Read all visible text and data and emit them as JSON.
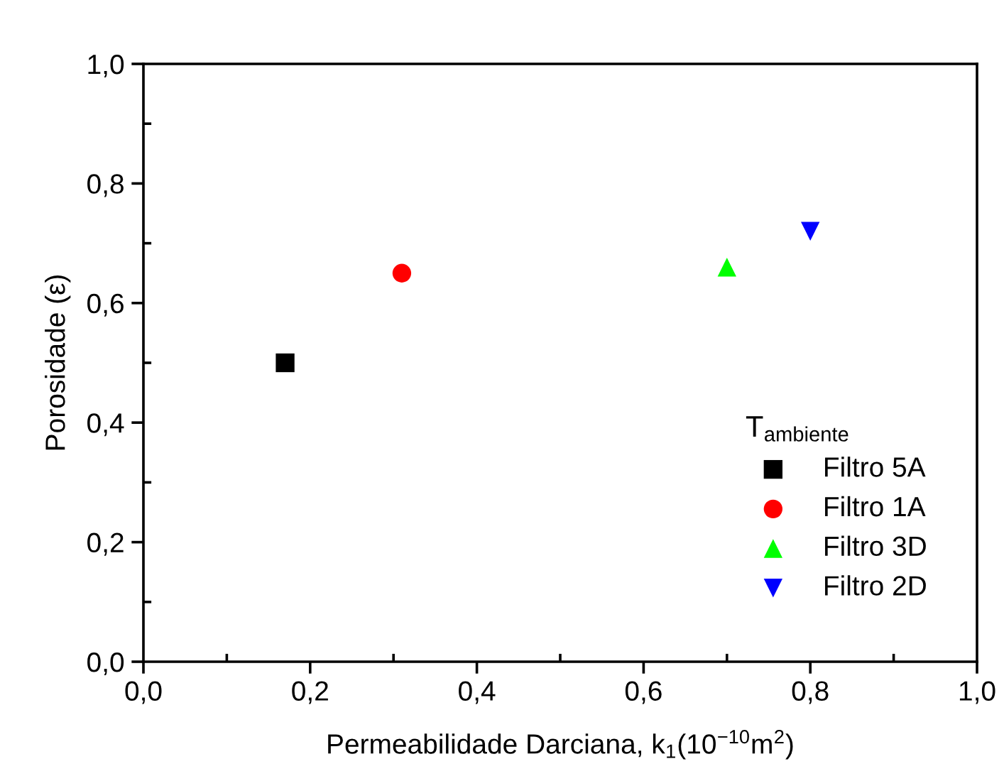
{
  "chart_data": {
    "type": "scatter",
    "xlabel": "Permeabilidade Darciana, k$_{1}$(10$^{−10}$m$^{2}$)",
    "ylabel": "Porosidade (ε)",
    "legend_title": "T$_{ambiente}$",
    "xlim": [
      0,
      1
    ],
    "ylim": [
      0,
      1
    ],
    "xticks": [
      {
        "value": 0,
        "label": "0,0"
      },
      {
        "value": 0.2,
        "label": "0,2"
      },
      {
        "value": 0.4,
        "label": "0,4"
      },
      {
        "value": 0.6,
        "label": "0,6"
      },
      {
        "value": 0.8,
        "label": "0,8"
      },
      {
        "value": 1,
        "label": "1,0"
      }
    ],
    "yticks": [
      {
        "value": 0,
        "label": "0,0"
      },
      {
        "value": 0.2,
        "label": "0,2"
      },
      {
        "value": 0.4,
        "label": "0,4"
      },
      {
        "value": 0.6,
        "label": "0,6"
      },
      {
        "value": 0.8,
        "label": "0,8"
      },
      {
        "value": 1,
        "label": "1,0"
      }
    ],
    "grid": false,
    "legend": "bottom right",
    "series": [
      {
        "name": "Filtro 5A",
        "color": "#000000",
        "marker": "square",
        "x": [
          0.17
        ],
        "values": [
          0.5
        ]
      },
      {
        "name": "Filtro 1A",
        "color": "#ff0000",
        "marker": "circle",
        "x": [
          0.31
        ],
        "values": [
          0.65
        ]
      },
      {
        "name": "Filtro 3D",
        "color": "#00ff00",
        "marker": "triangle",
        "x": [
          0.7
        ],
        "values": [
          0.66
        ]
      },
      {
        "name": "Filtro 2D",
        "color": "#0000ff",
        "marker": "triangle-down",
        "x": [
          0.8
        ],
        "values": [
          0.72
        ]
      }
    ]
  }
}
